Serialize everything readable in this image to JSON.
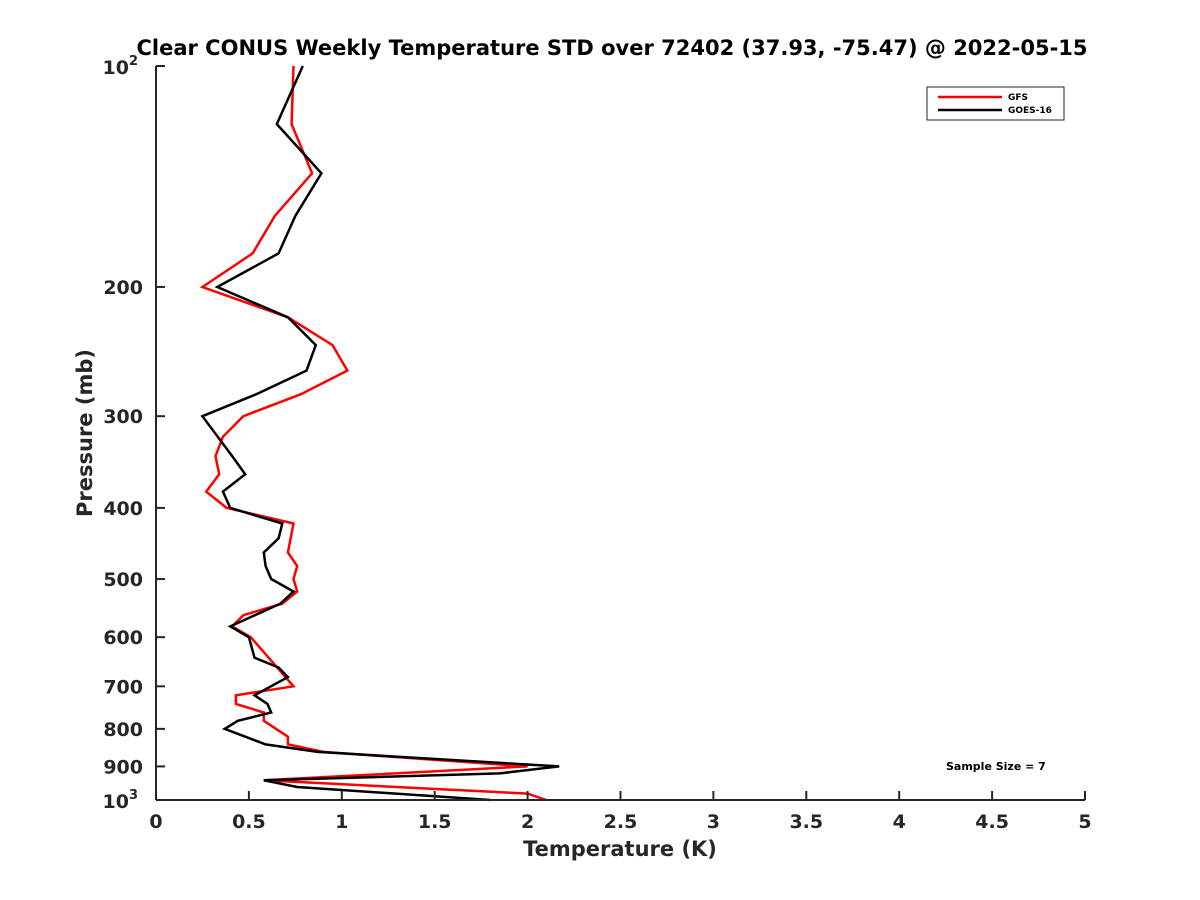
{
  "chart_data": {
    "type": "line",
    "title": "Clear CONUS Weekly Temperature STD over 72402 (37.93, -75.47) @ 2022-05-15",
    "xlabel": "Temperature (K)",
    "ylabel": "Pressure (mb)",
    "xlim": [
      0,
      5
    ],
    "ylim": [
      100,
      1000
    ],
    "yscale": "log",
    "y_reversed": true,
    "grid": false,
    "x_ticks": [
      0,
      0.5,
      1,
      1.5,
      2,
      2.5,
      3,
      3.5,
      4,
      4.5,
      5
    ],
    "x_tick_labels": [
      "0",
      "0.5",
      "1",
      "1.5",
      "2",
      "2.5",
      "3",
      "3.5",
      "4",
      "4.5",
      "5"
    ],
    "y_ticks": [
      100,
      200,
      300,
      400,
      500,
      600,
      700,
      800,
      900,
      1000
    ],
    "y_tick_labels": [
      {
        "base": "10",
        "exp": "2"
      },
      "200",
      "300",
      "400",
      "500",
      "600",
      "700",
      "800",
      "900",
      {
        "base": "10",
        "exp": "3"
      }
    ],
    "legend_placement": "top-right",
    "annotation": "Sample Size = 7",
    "series": [
      {
        "name": "GFS",
        "color": "#ff0000",
        "points": [
          [
            100,
            0.74
          ],
          [
            120,
            0.73
          ],
          [
            140,
            0.84
          ],
          [
            160,
            0.64
          ],
          [
            180,
            0.52
          ],
          [
            200,
            0.25
          ],
          [
            220,
            0.71
          ],
          [
            240,
            0.95
          ],
          [
            260,
            1.03
          ],
          [
            280,
            0.78
          ],
          [
            300,
            0.47
          ],
          [
            320,
            0.36
          ],
          [
            340,
            0.32
          ],
          [
            360,
            0.34
          ],
          [
            380,
            0.27
          ],
          [
            400,
            0.38
          ],
          [
            420,
            0.74
          ],
          [
            460,
            0.71
          ],
          [
            480,
            0.76
          ],
          [
            500,
            0.74
          ],
          [
            520,
            0.76
          ],
          [
            540,
            0.68
          ],
          [
            560,
            0.47
          ],
          [
            580,
            0.41
          ],
          [
            600,
            0.51
          ],
          [
            700,
            0.74
          ],
          [
            720,
            0.43
          ],
          [
            740,
            0.43
          ],
          [
            760,
            0.58
          ],
          [
            780,
            0.58
          ],
          [
            820,
            0.71
          ],
          [
            840,
            0.71
          ],
          [
            860,
            0.9
          ],
          [
            900,
            2.0
          ],
          [
            940,
            0.58
          ],
          [
            980,
            2.0
          ],
          [
            1000,
            2.1
          ]
        ]
      },
      {
        "name": "GOES-16",
        "color": "#000000",
        "points": [
          [
            100,
            0.79
          ],
          [
            120,
            0.65
          ],
          [
            140,
            0.89
          ],
          [
            160,
            0.75
          ],
          [
            180,
            0.66
          ],
          [
            200,
            0.33
          ],
          [
            220,
            0.71
          ],
          [
            240,
            0.86
          ],
          [
            260,
            0.81
          ],
          [
            280,
            0.54
          ],
          [
            300,
            0.25
          ],
          [
            340,
            0.41
          ],
          [
            360,
            0.48
          ],
          [
            380,
            0.36
          ],
          [
            400,
            0.4
          ],
          [
            420,
            0.68
          ],
          [
            440,
            0.66
          ],
          [
            460,
            0.58
          ],
          [
            480,
            0.59
          ],
          [
            500,
            0.62
          ],
          [
            520,
            0.74
          ],
          [
            540,
            0.67
          ],
          [
            580,
            0.4
          ],
          [
            600,
            0.5
          ],
          [
            640,
            0.53
          ],
          [
            660,
            0.66
          ],
          [
            680,
            0.71
          ],
          [
            720,
            0.53
          ],
          [
            740,
            0.6
          ],
          [
            760,
            0.62
          ],
          [
            780,
            0.44
          ],
          [
            800,
            0.37
          ],
          [
            840,
            0.59
          ],
          [
            860,
            0.87
          ],
          [
            900,
            2.17
          ],
          [
            920,
            1.85
          ],
          [
            940,
            0.58
          ],
          [
            960,
            0.76
          ],
          [
            1000,
            1.8
          ]
        ]
      }
    ]
  }
}
